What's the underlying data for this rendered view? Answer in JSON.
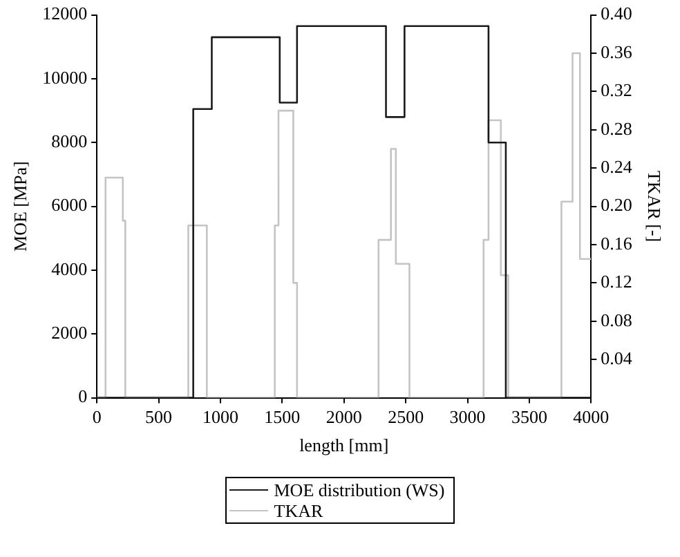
{
  "chart_data": {
    "type": "step",
    "xlabel": "length [mm]",
    "ylabel": "MOE [MPa]",
    "y2label": "TKAR [-]",
    "xlim": [
      0,
      4000
    ],
    "xticks": [
      0,
      500,
      1000,
      1500,
      2000,
      2500,
      3000,
      3500,
      4000
    ],
    "ylim": [
      0,
      12000
    ],
    "yticks": [
      0,
      2000,
      4000,
      6000,
      8000,
      10000,
      12000
    ],
    "y2lim": [
      0,
      0.4
    ],
    "y2ticks": [
      0.04,
      0.08,
      0.12,
      0.16,
      {
        "value": 0.2,
        "label": "0.20"
      },
      0.24,
      0.28,
      0.32,
      0.36,
      {
        "value": 0.4,
        "label": "0.40"
      }
    ],
    "grid": false,
    "legend": "bottom",
    "marker": "none",
    "line_style": "solid",
    "series": [
      {
        "name": "MOE distribution (WS)",
        "color": "#1a1a1a",
        "x": [
          0,
          780,
          930,
          1480,
          1620,
          2340,
          2490,
          3170,
          3310,
          4000
        ],
        "values": [
          0,
          9050,
          11300,
          9250,
          11650,
          8800,
          11650,
          8000,
          0,
          0
        ]
      },
      {
        "name": "TKAR",
        "color": "#c4c4c4",
        "axis": "y2",
        "x": [
          0,
          70,
          210,
          230,
          740,
          890,
          1440,
          1470,
          1590,
          1620,
          2280,
          2380,
          2420,
          2530,
          3130,
          3170,
          3270,
          3330,
          3760,
          3850,
          3910,
          4000
        ],
        "values": [
          0,
          0.23,
          0.185,
          0,
          0.18,
          0,
          0.18,
          0.3,
          0.12,
          0,
          0.165,
          0.26,
          0.14,
          0,
          0.165,
          0.29,
          0.128,
          0,
          0.205,
          0.36,
          0.145,
          0.145
        ]
      }
    ]
  }
}
